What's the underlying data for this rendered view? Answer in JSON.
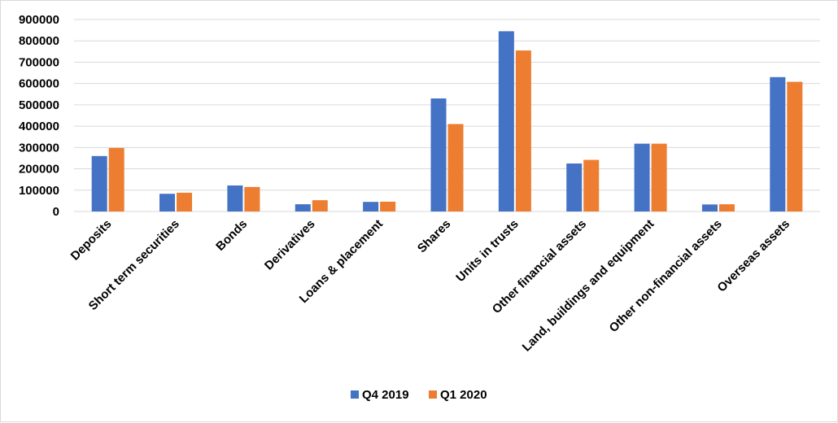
{
  "chart_data": {
    "type": "bar",
    "title": "",
    "xlabel": "",
    "ylabel": "",
    "ylim": [
      0,
      900000
    ],
    "yticks": [
      0,
      100000,
      200000,
      300000,
      400000,
      500000,
      600000,
      700000,
      800000,
      900000
    ],
    "grid": true,
    "legend_position": "bottom",
    "categories": [
      "Deposits",
      "Short term securities",
      "Bonds",
      "Derivatives",
      "Loans & placement",
      "Shares",
      "Units in trusts",
      "Other financial assets",
      "Land, buildings and equipment",
      "Other non-financial assets",
      "Overseas assets"
    ],
    "series": [
      {
        "name": "Q4 2019",
        "color": "#4472c4",
        "values": [
          260000,
          83000,
          122000,
          34000,
          45000,
          530000,
          845000,
          225000,
          318000,
          33000,
          630000
        ]
      },
      {
        "name": "Q1 2020",
        "color": "#ed7d31",
        "values": [
          298000,
          88000,
          115000,
          53000,
          46000,
          410000,
          755000,
          242000,
          318000,
          34000,
          608000
        ]
      }
    ]
  }
}
